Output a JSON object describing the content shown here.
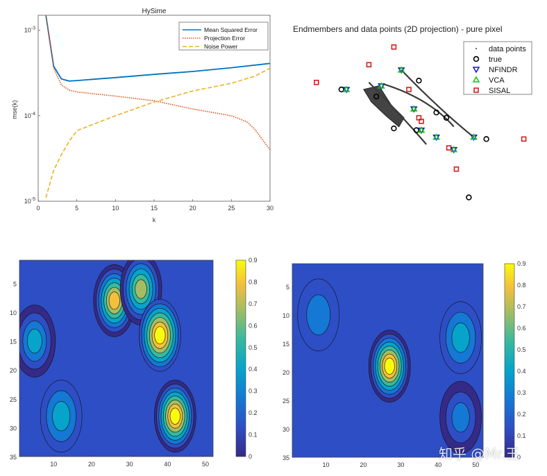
{
  "chart_data": [
    {
      "type": "line",
      "title": "HySime",
      "xlabel": "k",
      "ylabel": "mse(k)",
      "xlim": [
        0,
        30
      ],
      "ylim": [
        1e-05,
        0.0015
      ],
      "yscale": "log",
      "xticks": [
        "0",
        "5",
        "10",
        "15",
        "20",
        "25",
        "30"
      ],
      "yticks": [
        {
          "base": "10",
          "exp": "-5",
          "v": 1e-05
        },
        {
          "base": "10",
          "exp": "-4",
          "v": 0.0001
        },
        {
          "base": "10",
          "exp": "-3",
          "v": 0.001
        }
      ],
      "legend_position": "top-right",
      "series": [
        {
          "name": "Mean Squared Error",
          "style": "solid",
          "color": "#0072BD",
          "x": [
            1,
            2,
            3,
            4,
            5,
            10,
            15,
            20,
            25,
            30
          ],
          "y": [
            0.0015,
            0.00038,
            0.00027,
            0.000255,
            0.000258,
            0.00028,
            0.000305,
            0.00033,
            0.000365,
            0.00041
          ]
        },
        {
          "name": "Projection Error",
          "style": "dotted",
          "color": "#D95319",
          "x": [
            1,
            2,
            3,
            4,
            5,
            10,
            15,
            20,
            25,
            27,
            28,
            30
          ],
          "y": [
            0.0015,
            0.00036,
            0.00023,
            0.0002,
            0.00019,
            0.00017,
            0.00015,
            0.00012,
            0.0001,
            8.5e-05,
            7e-05,
            4e-05
          ]
        },
        {
          "name": "Noise Power",
          "style": "dashed",
          "color": "#EDB120",
          "x": [
            1,
            2,
            3,
            4,
            5,
            10,
            15,
            20,
            25,
            28,
            30
          ],
          "y": [
            1.1e-05,
            2.3e-05,
            3.5e-05,
            5e-05,
            6.7e-05,
            0.0001,
            0.000145,
            0.000195,
            0.00024,
            0.00029,
            0.00036
          ]
        }
      ]
    },
    {
      "type": "scatter",
      "title": "Endmembers and data points (2D projection) - pure pixel",
      "xlabel": "",
      "ylabel": "",
      "xlim": [
        0,
        100
      ],
      "ylim": [
        0,
        100
      ],
      "axes_visible": false,
      "legend_position": "top-right",
      "legend": [
        "data points",
        "true",
        "NFINDR",
        "VCA",
        "SISAL"
      ],
      "data_cloud": [
        [
          22,
          71
        ],
        [
          28,
          73
        ],
        [
          33,
          62
        ],
        [
          38,
          55
        ],
        [
          36,
          50
        ],
        [
          31,
          56
        ],
        [
          25,
          64
        ]
      ],
      "arcs": [
        {
          "from": [
            37,
            82
          ],
          "ctrl": [
            52,
            60
          ],
          "to": [
            66,
            44
          ]
        },
        {
          "from": [
            30,
            74
          ],
          "ctrl": [
            48,
            66
          ],
          "to": [
            58,
            50
          ]
        },
        {
          "from": [
            24,
            75
          ],
          "ctrl": [
            36,
            58
          ],
          "to": [
            47,
            40
          ]
        }
      ],
      "true": [
        [
          13,
          71
        ],
        [
          27,
          67
        ],
        [
          44,
          76
        ],
        [
          55,
          55
        ],
        [
          51,
          58
        ],
        [
          71,
          43
        ],
        [
          34,
          49
        ],
        [
          43,
          48
        ],
        [
          64,
          10
        ]
      ],
      "NFINDR": [
        [
          15,
          71
        ],
        [
          29,
          73
        ],
        [
          37,
          82
        ],
        [
          42,
          60
        ],
        [
          45,
          48
        ],
        [
          51,
          44
        ],
        [
          58,
          37
        ],
        [
          66,
          44
        ]
      ],
      "VCA": [
        [
          15,
          71
        ],
        [
          29,
          73
        ],
        [
          37,
          82
        ],
        [
          42,
          60
        ],
        [
          45,
          48
        ],
        [
          51,
          44
        ],
        [
          58,
          37
        ],
        [
          66,
          44
        ]
      ],
      "SISAL": [
        [
          3,
          75
        ],
        [
          24,
          85
        ],
        [
          34,
          95
        ],
        [
          40,
          71
        ],
        [
          44,
          55
        ],
        [
          56,
          38
        ],
        [
          59,
          26
        ],
        [
          86,
          43
        ],
        [
          45,
          53
        ]
      ]
    },
    {
      "type": "heatmap",
      "subtype": "filled-contour",
      "title": "",
      "xlim": [
        1,
        52
      ],
      "ylim": [
        1,
        35
      ],
      "xticks": [
        10,
        20,
        30,
        40,
        50
      ],
      "yticks": [
        5,
        10,
        15,
        20,
        25,
        30,
        35
      ],
      "colorbar": {
        "min": 0,
        "max": 0.9,
        "ticks": [
          "0",
          "0.1",
          "0.2",
          "0.3",
          "0.4",
          "0.5",
          "0.6",
          "0.7",
          "0.8",
          "0.9"
        ]
      },
      "colormap": "parula",
      "features": [
        {
          "x": 26,
          "y": 8,
          "level": 0.75
        },
        {
          "x": 33,
          "y": 6,
          "level": 0.65
        },
        {
          "x": 38,
          "y": 14,
          "level": 0.8
        },
        {
          "x": 42,
          "y": 28,
          "level": 0.85
        },
        {
          "x": 12,
          "y": 28,
          "level": 0.35
        },
        {
          "x": 5,
          "y": 15,
          "level": 0.45
        }
      ]
    },
    {
      "type": "heatmap",
      "subtype": "filled-contour",
      "title": "",
      "xlim": [
        1,
        52
      ],
      "ylim": [
        1,
        35
      ],
      "xticks": [
        10,
        20,
        30,
        40,
        50
      ],
      "yticks": [
        5,
        10,
        15,
        20,
        25,
        30,
        35
      ],
      "colorbar": {
        "min": 0,
        "max": 0.9,
        "ticks": [
          "0",
          "0.1",
          "0.2",
          "0.3",
          "0.4",
          "0.5",
          "0.6",
          "0.7",
          "0.8",
          "0.9"
        ]
      },
      "colormap": "parula",
      "features": [
        {
          "x": 27,
          "y": 19,
          "level": 0.9
        },
        {
          "x": 46,
          "y": 14,
          "level": 0.35
        },
        {
          "x": 46,
          "y": 28,
          "level": 0.3
        },
        {
          "x": 8,
          "y": 10,
          "level": 0.25
        }
      ]
    }
  ],
  "watermark": "知乎 @Mr.王"
}
